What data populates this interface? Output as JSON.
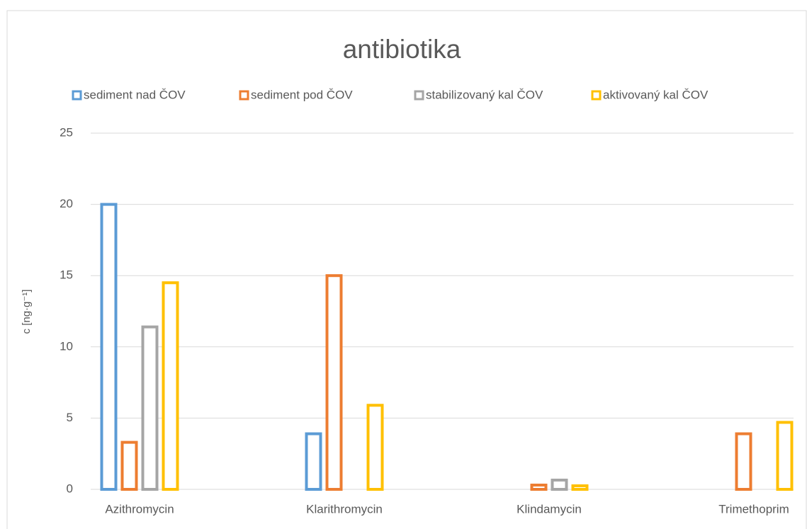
{
  "chart_data": {
    "type": "bar",
    "title": "antibiotika",
    "y_label": "c [ng·g⁻¹]",
    "categories": [
      "Azithromycin",
      "Klarithromycin",
      "Klindamycin",
      "Trimethoprim"
    ],
    "series": [
      {
        "name": "sediment nad ČOV",
        "color": "#5b9bd5",
        "values": [
          20,
          3.9,
          null,
          null
        ]
      },
      {
        "name": "sediment pod ČOV",
        "color": "#ed7d31",
        "values": [
          3.3,
          15,
          0.3,
          3.9
        ]
      },
      {
        "name": "stabilizovaný kal ČOV",
        "color": "#a5a5a5",
        "values": [
          11.4,
          null,
          0.65,
          null
        ]
      },
      {
        "name": "aktivovaný kal ČOV",
        "color": "#ffc000",
        "values": [
          14.5,
          5.9,
          0.25,
          4.7
        ]
      }
    ],
    "ylim": [
      0,
      25
    ],
    "yticks": [
      0,
      5,
      10,
      15,
      20,
      25
    ],
    "grid": true,
    "legend": "top"
  }
}
